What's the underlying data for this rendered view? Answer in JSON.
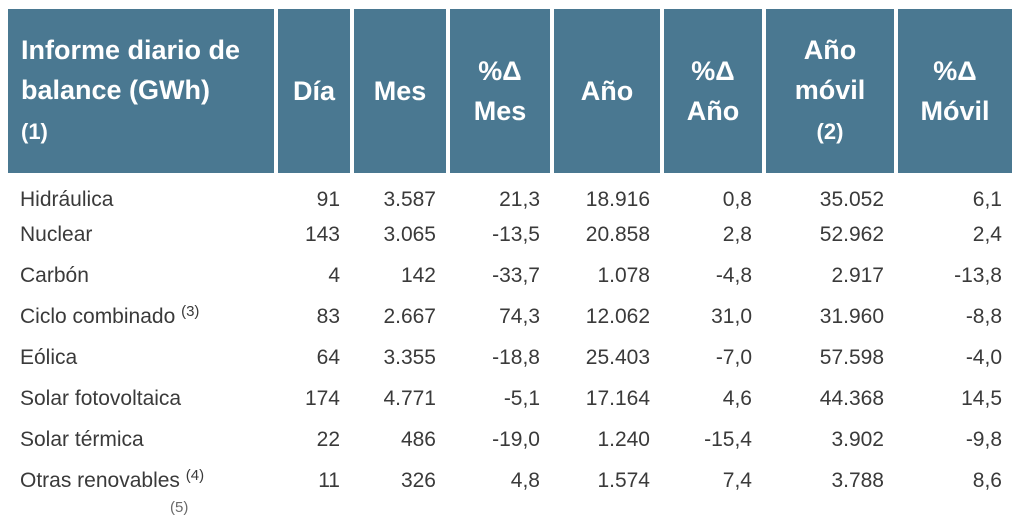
{
  "header": {
    "title_line1": "Informe diario de",
    "title_line2": "balance (GWh)",
    "title_note": "(1)",
    "col_dia": "Día",
    "col_mes": "Mes",
    "col_pct_mes_1": "%Δ",
    "col_pct_mes_2": "Mes",
    "col_ano": "Año",
    "col_pct_ano_1": "%Δ",
    "col_pct_ano_2": "Año",
    "col_ano_movil_1": "Año",
    "col_ano_movil_2": "móvil",
    "col_ano_movil_note": "(2)",
    "col_pct_movil_1": "%Δ",
    "col_pct_movil_2": "Móvil"
  },
  "rows": [
    {
      "name": "Hidráulica",
      "note": "",
      "dia": "91",
      "mes": "3.587",
      "pct_mes": "21,3",
      "ano": "18.916",
      "pct_ano": "0,8",
      "ano_movil": "35.052",
      "pct_movil": "6,1"
    },
    {
      "name": "Nuclear",
      "note": "",
      "dia": "143",
      "mes": "3.065",
      "pct_mes": "-13,5",
      "ano": "20.858",
      "pct_ano": "2,8",
      "ano_movil": "52.962",
      "pct_movil": "2,4"
    },
    {
      "name": "Carbón",
      "note": "",
      "dia": "4",
      "mes": "142",
      "pct_mes": "-33,7",
      "ano": "1.078",
      "pct_ano": "-4,8",
      "ano_movil": "2.917",
      "pct_movil": "-13,8"
    },
    {
      "name": "Ciclo combinado",
      "note": "(3)",
      "dia": "83",
      "mes": "2.667",
      "pct_mes": "74,3",
      "ano": "12.062",
      "pct_ano": "31,0",
      "ano_movil": "31.960",
      "pct_movil": "-8,8"
    },
    {
      "name": "Eólica",
      "note": "",
      "dia": "64",
      "mes": "3.355",
      "pct_mes": "-18,8",
      "ano": "25.403",
      "pct_ano": "-7,0",
      "ano_movil": "57.598",
      "pct_movil": "-4,0"
    },
    {
      "name": "Solar fotovoltaica",
      "note": "",
      "dia": "174",
      "mes": "4.771",
      "pct_mes": "-5,1",
      "ano": "17.164",
      "pct_ano": "4,6",
      "ano_movil": "44.368",
      "pct_movil": "14,5"
    },
    {
      "name": "Solar térmica",
      "note": "",
      "dia": "22",
      "mes": "486",
      "pct_mes": "-19,0",
      "ano": "1.240",
      "pct_ano": "-15,4",
      "ano_movil": "3.902",
      "pct_movil": "-9,8"
    },
    {
      "name": "Otras renovables",
      "note": "(4)",
      "dia": "11",
      "mes": "326",
      "pct_mes": "4,8",
      "ano": "1.574",
      "pct_ano": "7,4",
      "ano_movil": "3.788",
      "pct_movil": "8,6"
    }
  ],
  "partial_row": {
    "note": "(5)"
  }
}
